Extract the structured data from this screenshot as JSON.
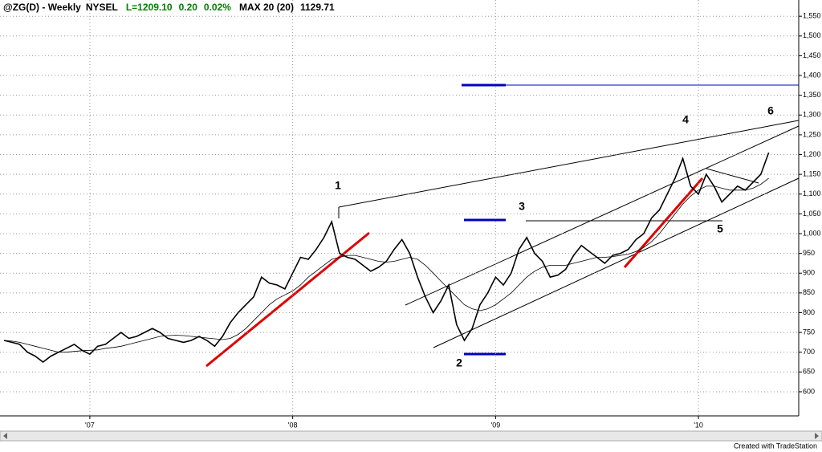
{
  "chart_data": {
    "type": "line",
    "header": [
      "@ZG(D) - Weekly",
      "NYSEL",
      "L=1209.10",
      "0.20",
      "0.02%",
      "MAX 20 (20)",
      "1129.71"
    ],
    "header_colors": [
      "#000000",
      "#000000",
      "#008000",
      "#008000",
      "#008000",
      "#000000",
      "#000000"
    ],
    "categories": [
      null,
      null,
      null,
      null,
      null,
      null,
      null,
      null,
      null,
      null,
      null,
      "'07",
      null,
      null,
      null,
      null,
      null,
      null,
      null,
      null,
      null,
      null,
      null,
      null,
      null,
      null,
      null,
      null,
      null,
      null,
      null,
      null,
      null,
      null,
      null,
      null,
      null,
      "'08",
      null,
      null,
      null,
      null,
      null,
      null,
      null,
      null,
      null,
      null,
      null,
      null,
      null,
      null,
      null,
      null,
      null,
      null,
      null,
      null,
      null,
      null,
      null,
      null,
      null,
      "'09",
      null,
      null,
      null,
      null,
      null,
      null,
      null,
      null,
      null,
      null,
      null,
      null,
      null,
      null,
      null,
      null,
      null,
      null,
      null,
      null,
      null,
      null,
      null,
      null,
      null,
      "'10",
      null,
      null,
      null,
      null,
      null,
      null,
      null,
      null,
      null
    ],
    "series": [
      {
        "color": "#000000",
        "values": [
          730,
          725,
          720,
          700,
          690,
          675,
          690,
          700,
          710,
          720,
          705,
          695,
          715,
          720,
          735,
          750,
          735,
          740,
          750,
          760,
          750,
          735,
          730,
          725,
          730,
          740,
          730,
          715,
          740,
          775,
          800,
          820,
          840,
          890,
          875,
          870,
          860,
          900,
          940,
          935,
          960,
          990,
          1030,
          950,
          940,
          935,
          920,
          905,
          915,
          930,
          960,
          985,
          950,
          890,
          840,
          800,
          830,
          870,
          770,
          730,
          760,
          820,
          850,
          890,
          870,
          900,
          960,
          990,
          950,
          930,
          890,
          895,
          910,
          945,
          970,
          955,
          940,
          925,
          945,
          950,
          960,
          985,
          1000,
          1040,
          1060,
          1100,
          1140,
          1190,
          1120,
          1100,
          1150,
          1120,
          1080,
          1100,
          1120,
          1110,
          1130,
          1150,
          1205
        ]
      },
      {
        "color": "#000000",
        "values": [
          730,
          728,
          725,
          720,
          715,
          710,
          705,
          700,
          700,
          702,
          704,
          705,
          706,
          710,
          712,
          715,
          720,
          725,
          730,
          735,
          740,
          742,
          743,
          742,
          740,
          738,
          736,
          734,
          732,
          735,
          745,
          760,
          780,
          800,
          820,
          835,
          845,
          855,
          870,
          890,
          905,
          920,
          935,
          940,
          945,
          945,
          940,
          935,
          930,
          928,
          930,
          935,
          940,
          935,
          920,
          900,
          880,
          860,
          840,
          820,
          810,
          805,
          810,
          820,
          835,
          850,
          870,
          890,
          905,
          915,
          920,
          920,
          920,
          925,
          930,
          935,
          940,
          940,
          942,
          945,
          948,
          955,
          965,
          980,
          1000,
          1025,
          1050,
          1075,
          1095,
          1110,
          1120,
          1120,
          1115,
          1110,
          1110,
          1110,
          1115,
          1125,
          1140
        ]
      }
    ],
    "ylim": [
      539,
      1591
    ],
    "yticks": [
      600,
      650,
      700,
      750,
      800,
      850,
      900,
      950,
      {
        "value": 1000,
        "label": "1,000"
      },
      {
        "value": 1050,
        "label": "1,050"
      },
      {
        "value": 1100,
        "label": "1,100"
      },
      {
        "value": 1150,
        "label": "1,150"
      },
      {
        "value": 1200,
        "label": "1,200"
      },
      {
        "value": 1250,
        "label": "1,250"
      },
      {
        "value": 1300,
        "label": "1,300"
      },
      {
        "value": 1350,
        "label": "1,350"
      },
      {
        "value": 1400,
        "label": "1,400"
      },
      {
        "value": 1450,
        "label": "1,450"
      },
      {
        "value": 1500,
        "label": "1,500"
      },
      {
        "value": 1550,
        "label": "1,550"
      }
    ],
    "grid": true,
    "annotations": [
      "1",
      "2",
      "3",
      "4",
      "5",
      "6"
    ],
    "footer": "Created with TradeStation"
  }
}
